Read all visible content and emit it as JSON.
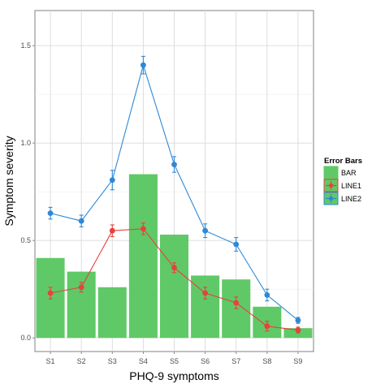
{
  "chart_data": {
    "type": "bar",
    "xlabel": "PHQ-9 symptoms",
    "ylabel": "Symptom severity",
    "categories": [
      "S1",
      "S2",
      "S3",
      "S4",
      "S5",
      "S6",
      "S7",
      "S8",
      "S9"
    ],
    "ylim": [
      -0.07,
      1.68
    ],
    "yticks": [
      0.0,
      0.5,
      1.0,
      1.5
    ],
    "ytick_labels": [
      "0.0",
      "0.5",
      "1.0",
      "1.5"
    ],
    "grid": true,
    "legend": {
      "title": "Error Bars",
      "position": "right",
      "entries": [
        "BAR",
        "LINE1",
        "LINE2"
      ]
    },
    "series": [
      {
        "name": "BAR",
        "kind": "bar",
        "color": "#5fc967",
        "values": [
          0.41,
          0.34,
          0.26,
          0.84,
          0.53,
          0.32,
          0.3,
          0.16,
          0.05
        ]
      },
      {
        "name": "LINE1",
        "kind": "line",
        "color": "#e8413d",
        "values": [
          0.23,
          0.26,
          0.55,
          0.56,
          0.36,
          0.23,
          0.18,
          0.06,
          0.04
        ],
        "error": [
          0.03,
          0.025,
          0.03,
          0.03,
          0.025,
          0.03,
          0.03,
          0.025,
          0.015
        ]
      },
      {
        "name": "LINE2",
        "kind": "line",
        "color": "#2f88d6",
        "values": [
          0.64,
          0.6,
          0.81,
          1.4,
          0.89,
          0.55,
          0.48,
          0.22,
          0.09
        ],
        "error": [
          0.03,
          0.03,
          0.05,
          0.045,
          0.04,
          0.035,
          0.035,
          0.03,
          0.015
        ]
      }
    ]
  }
}
